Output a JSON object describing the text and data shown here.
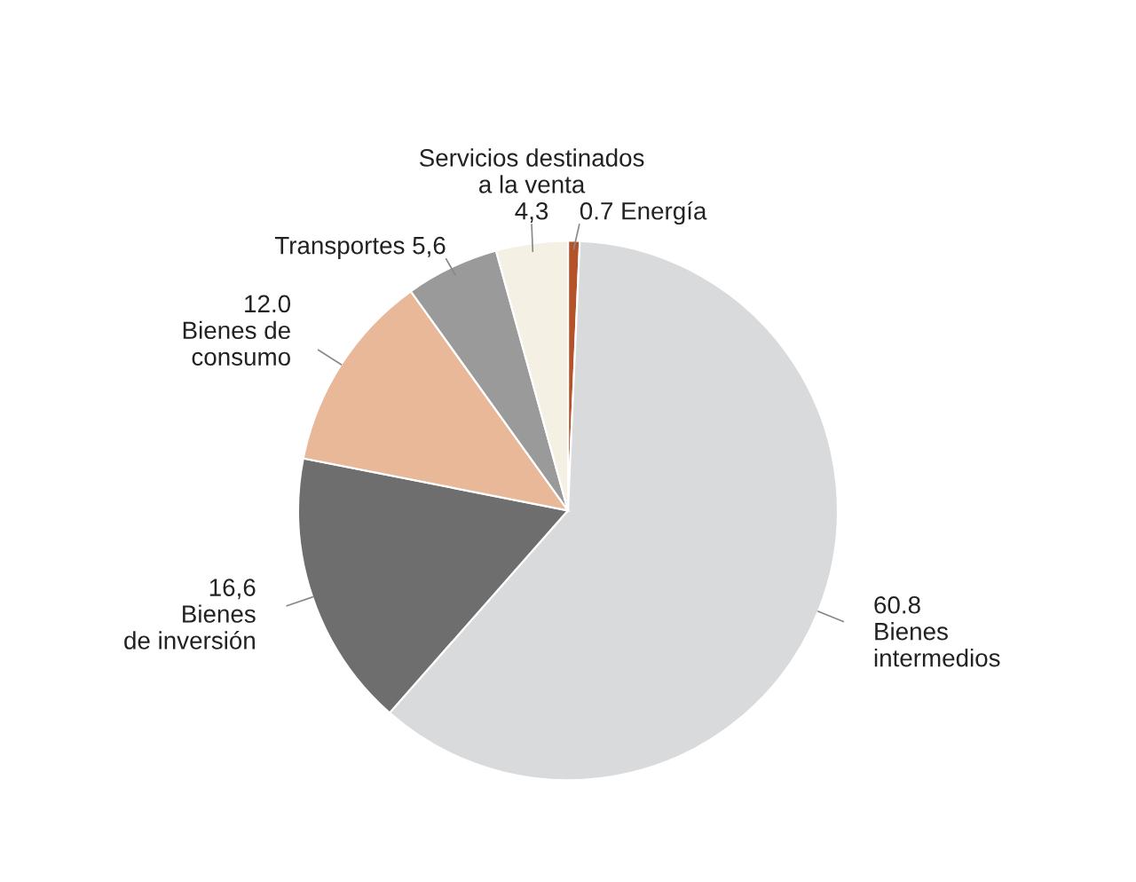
{
  "chart_data": {
    "type": "pie",
    "categories": [
      "Energía",
      "Bienes\nintermedios",
      "Bienes\nde inversión",
      "Bienes de\nconsumo",
      "Transportes",
      "Servicios destinados\na la venta"
    ],
    "values": [
      0.7,
      60.8,
      16.6,
      12.0,
      5.6,
      4.3
    ],
    "value_labels": [
      "0.7",
      "60.8",
      "16,6",
      "12.0",
      "5,6",
      "4,3"
    ],
    "colors": [
      "#b5522a",
      "#d9dadb",
      "#6e6e6e",
      "#e8b899",
      "#9a9a9a",
      "#f5f0e4"
    ]
  }
}
